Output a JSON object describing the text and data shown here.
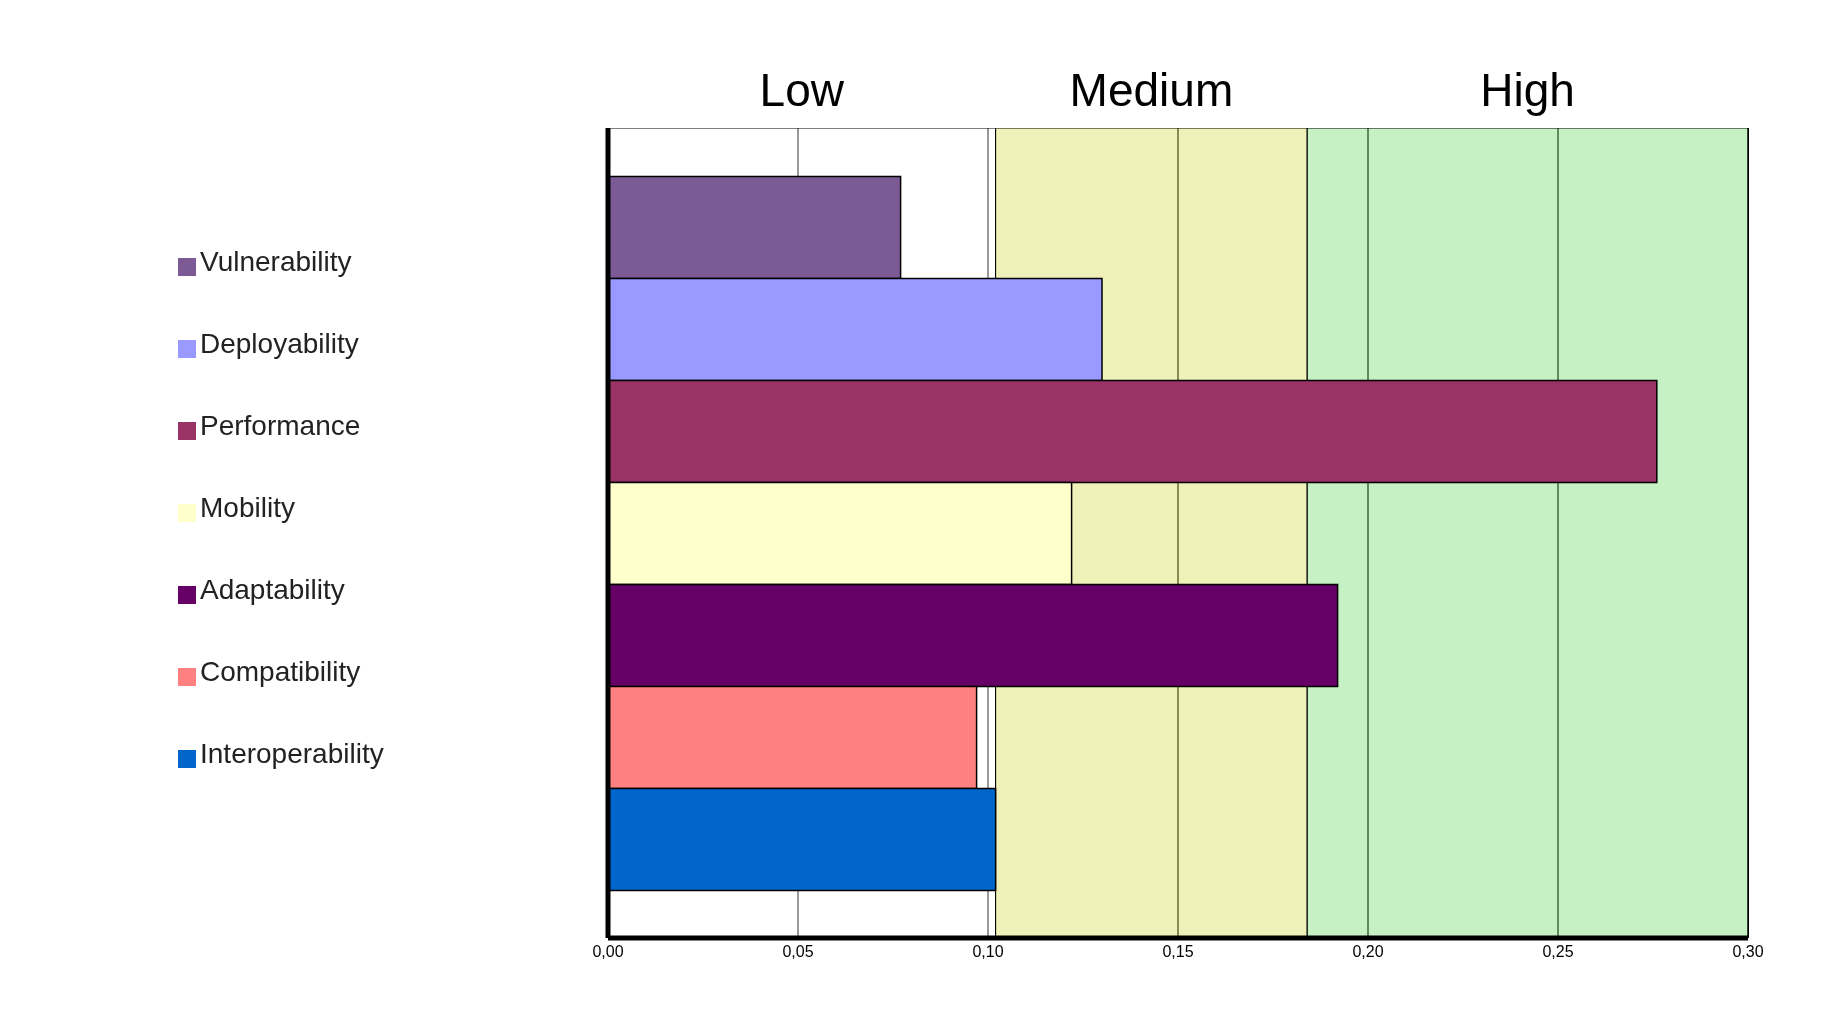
{
  "chart_data": {
    "type": "bar",
    "orientation": "horizontal",
    "categories": [
      null
    ],
    "series": [
      {
        "name": "Vulnerability",
        "color": "#7b5a95",
        "values": [
          0.077
        ]
      },
      {
        "name": "Deployability",
        "color": "#9999ff",
        "values": [
          0.13
        ]
      },
      {
        "name": "Performance",
        "color": "#993366",
        "values": [
          0.276
        ]
      },
      {
        "name": "Mobility",
        "color": "#ffffcc",
        "values": [
          0.122
        ]
      },
      {
        "name": "Adaptability",
        "color": "#660066",
        "values": [
          0.192
        ]
      },
      {
        "name": "Compatibility",
        "color": "#ff8080",
        "values": [
          0.097
        ]
      },
      {
        "name": "Interoperability",
        "color": "#0066cc",
        "values": [
          0.102
        ]
      }
    ],
    "xlim": [
      0,
      0.3
    ],
    "xticks": [
      {
        "value": 0,
        "label": "0,00"
      },
      {
        "value": 0.05,
        "label": "0,05"
      },
      {
        "value": 0.1,
        "label": "0,10"
      },
      {
        "value": 0.15,
        "label": "0,15"
      },
      {
        "value": 0.2,
        "label": "0,20"
      },
      {
        "value": 0.25,
        "label": "0,25"
      },
      {
        "value": 0.3,
        "label": "0,30"
      }
    ],
    "bands": [
      {
        "axis": "x",
        "from": 0,
        "to": 0.102,
        "label": "Low",
        "color": "#ffffff"
      },
      {
        "axis": "x",
        "from": 0.102,
        "to": 0.184,
        "label": "Medium",
        "color": "#e6e68a"
      },
      {
        "axis": "x",
        "from": 0.184,
        "to": 0.3,
        "label": "High",
        "color": "#9ee89e"
      }
    ],
    "grid": "x",
    "legend": "left"
  }
}
